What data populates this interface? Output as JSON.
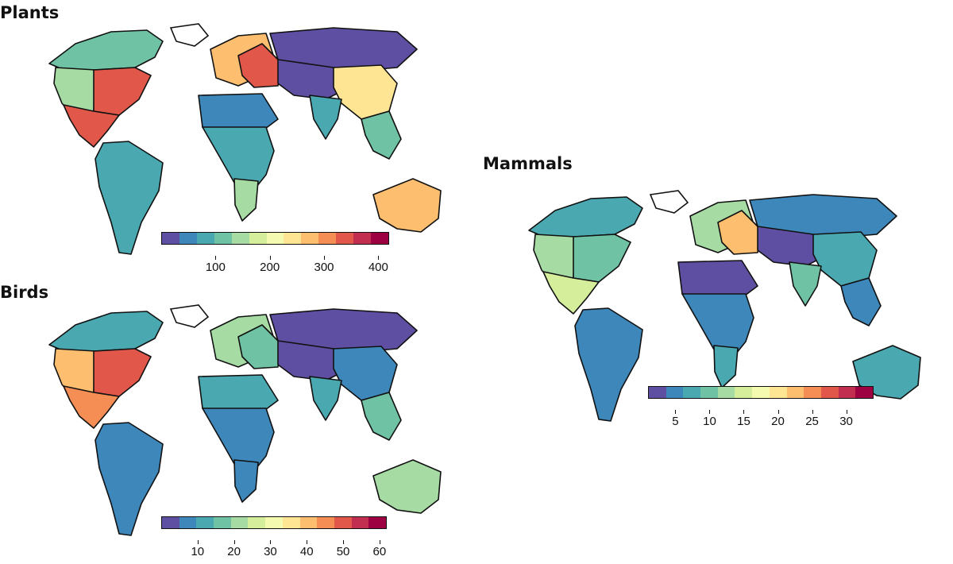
{
  "palette": [
    "#5e4fa2",
    "#3d87ba",
    "#4aa8b0",
    "#70c2a5",
    "#a6dba4",
    "#d5ee9b",
    "#f4fab0",
    "#fee593",
    "#fdbf6f",
    "#f58e54",
    "#e1584b",
    "#c12e4f",
    "#9e0142"
  ],
  "panels": [
    {
      "id": "plants",
      "title": "Plants",
      "colorbar": {
        "min": 0,
        "max": 420,
        "ticks": [
          "100",
          "200",
          "300",
          "400"
        ],
        "tick_values": [
          100,
          200,
          300,
          400
        ]
      },
      "regions": {
        "namerica_east": "#e1584b",
        "namerica_west": "#a6dba4",
        "mexico": "#e1584b",
        "canada": "#70c2a5",
        "south_america": "#4aa8b0",
        "europe": "#fdbf6f",
        "east_europe": "#e1584b",
        "north_africa": "#3d87ba",
        "africa": "#4aa8b0",
        "south_africa": "#a6dba4",
        "siberia": "#5e4fa2",
        "central_asia": "#5e4fa2",
        "china": "#fee593",
        "india": "#4aa8b0",
        "se_asia": "#70c2a5",
        "australia": "#fdbf6f"
      }
    },
    {
      "id": "birds",
      "title": "Birds",
      "colorbar": {
        "min": 0,
        "max": 62,
        "ticks": [
          "10",
          "20",
          "30",
          "40",
          "50",
          "60"
        ],
        "tick_values": [
          10,
          20,
          30,
          40,
          50,
          60
        ]
      },
      "regions": {
        "namerica_east": "#e1584b",
        "namerica_west": "#fdbf6f",
        "mexico": "#f58e54",
        "canada": "#4aa8b0",
        "south_america": "#3d87ba",
        "europe": "#a6dba4",
        "east_europe": "#70c2a5",
        "north_africa": "#4aa8b0",
        "africa": "#3d87ba",
        "south_africa": "#3d87ba",
        "siberia": "#5e4fa2",
        "central_asia": "#5e4fa2",
        "china": "#3d87ba",
        "india": "#4aa8b0",
        "se_asia": "#70c2a5",
        "australia": "#a6dba4"
      }
    },
    {
      "id": "mammals",
      "title": "Mammals",
      "colorbar": {
        "min": 1,
        "max": 34,
        "ticks": [
          "5",
          "10",
          "15",
          "20",
          "25",
          "30"
        ],
        "tick_values": [
          5,
          10,
          15,
          20,
          25,
          30
        ]
      },
      "regions": {
        "namerica_east": "#70c2a5",
        "namerica_west": "#a6dba4",
        "mexico": "#d5ee9b",
        "canada": "#4aa8b0",
        "south_america": "#3d87ba",
        "europe": "#a6dba4",
        "east_europe": "#fdbf6f",
        "north_africa": "#5e4fa2",
        "africa": "#3d87ba",
        "south_africa": "#4aa8b0",
        "siberia": "#3d87ba",
        "central_asia": "#5e4fa2",
        "china": "#4aa8b0",
        "india": "#70c2a5",
        "se_asia": "#3d87ba",
        "australia": "#4aa8b0"
      }
    }
  ]
}
